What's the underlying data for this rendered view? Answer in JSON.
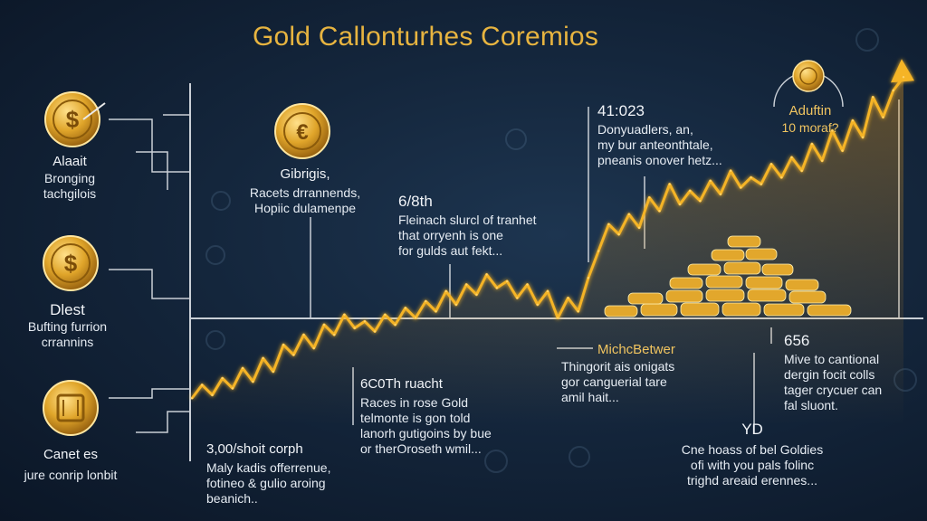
{
  "title": "Gold Callonturhes Coremios",
  "colors": {
    "gold": "#e7b440",
    "line": "#f5b428",
    "text": "#e6ecf3",
    "bg": "#14263c"
  },
  "left_panel": [
    {
      "icon": "dollar-coin-icon",
      "title": "Alaait",
      "lines": [
        "Bronging",
        "tachgilois"
      ]
    },
    {
      "icon": "dollar-coin-icon",
      "title": "Dlest",
      "lines": [
        "Bufting furrion",
        "crrannins"
      ]
    },
    {
      "icon": "gold-bar-coin-icon",
      "title": "Canet es",
      "lines": [
        "jure conrip lonbit"
      ]
    }
  ],
  "annotations": {
    "coin_top": {
      "icon": "coin-icon",
      "title": "Gibrigis,",
      "lines": [
        "Racets drrannends,",
        "Hopiic dulamenpe"
      ]
    },
    "a678": {
      "title": "6/8th",
      "lines": [
        "Fleinach slurcl of tranhet",
        "that orryenh is one",
        "for gulds aut fekt..."
      ]
    },
    "a41023": {
      "title": "41:023",
      "lines": [
        "Donyuadlers, an,",
        "my bur anteonthtale,",
        "pneanis onover hetz..."
      ]
    },
    "top_right": {
      "icon": "coin-icon",
      "title": "Aduftin",
      "lines": [
        "10 moraf?"
      ]
    },
    "a3700": {
      "title": "3,00/shoit corph",
      "lines": [
        "Maly kadis offerrenue,",
        "fotineo & gulio aroing",
        "beanich.."
      ]
    },
    "a6c": {
      "title": "6C0Th ruacht",
      "lines": [
        "Races in rose Gold",
        "telmonte is gon told",
        "lanorh gutigoins by bue",
        "or therOroseth wmil..."
      ]
    },
    "michc": {
      "title": "MichcBetwer",
      "lines": [
        "Thingorit ais onigats",
        "gor canguerial tare",
        "amil hait..."
      ]
    },
    "a656": {
      "title": "656",
      "lines": [
        "Mive to cantional",
        "dergin focit colls",
        "tager crycuer can",
        "fal sluont."
      ]
    },
    "yd": {
      "title": "YD",
      "lines": [
        "Cne hoass of bel Goldies",
        "ofi with you pals folinc",
        "trighd areaid erennes..."
      ]
    }
  },
  "chart_data": {
    "type": "line",
    "title": "Gold Callonturhes Coremios",
    "xlabel": "",
    "ylabel": "",
    "ylim": [
      0,
      100
    ],
    "x": [
      0,
      1,
      2,
      3,
      4,
      5,
      6,
      7,
      8,
      9,
      10,
      11,
      12,
      13,
      14,
      15,
      16,
      17,
      18,
      19,
      20,
      21,
      22,
      23,
      24,
      25,
      26,
      27,
      28,
      29,
      30,
      31,
      32,
      33,
      34,
      35,
      36,
      37,
      38,
      39,
      40,
      41,
      42,
      43,
      44,
      45,
      46,
      47,
      48,
      49,
      50,
      51,
      52,
      53,
      54,
      55,
      56,
      57,
      58,
      59,
      60,
      61,
      62,
      63,
      64,
      65,
      66,
      67,
      68,
      69,
      70
    ],
    "series": [
      {
        "values": [
          8,
          12,
          9,
          14,
          11,
          17,
          13,
          20,
          16,
          24,
          21,
          27,
          23,
          30,
          27,
          33,
          29,
          31,
          28,
          33,
          30,
          35,
          32,
          37,
          34,
          40,
          36,
          42,
          39,
          45,
          41,
          43,
          38,
          42,
          36,
          40,
          32,
          38,
          34,
          44,
          52,
          60,
          57,
          63,
          59,
          68,
          64,
          72,
          66,
          70,
          67,
          73,
          69,
          76,
          71,
          74,
          72,
          78,
          74,
          80,
          76,
          84,
          79,
          88,
          82,
          91,
          86,
          98,
          92,
          100,
          104
        ]
      }
    ],
    "grid": false,
    "legend": "none"
  }
}
